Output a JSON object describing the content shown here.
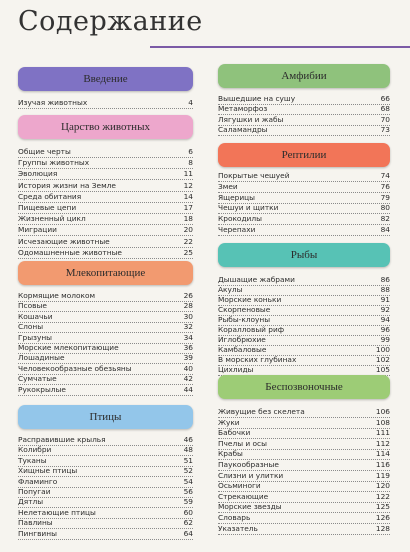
{
  "title": "Содержание",
  "columns": [
    {
      "sections": [
        {
          "heading": "Введение",
          "entries": [
            {
              "title": "Изучая животных",
              "page": 4
            }
          ]
        },
        {
          "heading": "Царство животных",
          "entries": [
            {
              "title": "Общие черты",
              "page": 6
            },
            {
              "title": "Группы животных",
              "page": 8
            },
            {
              "title": "Эволюция",
              "page": 11
            },
            {
              "title": "История жизни на Земле",
              "page": 12
            },
            {
              "title": "Среда обитания",
              "page": 14
            },
            {
              "title": "Пищевые цепи",
              "page": 17
            },
            {
              "title": "Жизненный цикл",
              "page": 18
            },
            {
              "title": "Миграции",
              "page": 20
            },
            {
              "title": "Исчезающие животные",
              "page": 22
            },
            {
              "title": "Одомашненные животные",
              "page": 25
            }
          ]
        },
        {
          "heading": "Млекопитающие",
          "entries": [
            {
              "title": "Кормящие молоком",
              "page": 26
            },
            {
              "title": "Псовые",
              "page": 28
            },
            {
              "title": "Кошачьи",
              "page": 30
            },
            {
              "title": "Слоны",
              "page": 32
            },
            {
              "title": "Грызуны",
              "page": 34
            },
            {
              "title": "Морские млекопитающие",
              "page": 36
            },
            {
              "title": "Лошадиные",
              "page": 39
            },
            {
              "title": "Человекообразные обезьяны",
              "page": 40
            },
            {
              "title": "Сумчатые",
              "page": 42
            },
            {
              "title": "Рукокрылые",
              "page": 44
            }
          ]
        },
        {
          "heading": "Птицы",
          "entries": [
            {
              "title": "Расправившие крылья",
              "page": 46
            },
            {
              "title": "Колибри",
              "page": 48
            },
            {
              "title": "Туканы",
              "page": 51
            },
            {
              "title": "Хищные птицы",
              "page": 52
            },
            {
              "title": "Фламинго",
              "page": 54
            },
            {
              "title": "Попугаи",
              "page": 56
            },
            {
              "title": "Дятлы",
              "page": 59
            },
            {
              "title": "Нелетающие птицы",
              "page": 60
            },
            {
              "title": "Павлины",
              "page": 62
            },
            {
              "title": "Пингвины",
              "page": 64
            }
          ]
        }
      ]
    },
    {
      "sections": [
        {
          "heading": "Амфибии",
          "entries": [
            {
              "title": "Вышедшие на сушу",
              "page": 66
            },
            {
              "title": "Метаморфоз",
              "page": 68
            },
            {
              "title": "Лягушки и жабы",
              "page": 70
            },
            {
              "title": "Саламандры",
              "page": 73
            }
          ]
        },
        {
          "heading": "Рептилии",
          "entries": [
            {
              "title": "Покрытые чешуей",
              "page": 74
            },
            {
              "title": "Змеи",
              "page": 76
            },
            {
              "title": "Ящерицы",
              "page": 79
            },
            {
              "title": "Чешуи и щитки",
              "page": 80
            },
            {
              "title": "Крокодилы",
              "page": 82
            },
            {
              "title": "Черепахи",
              "page": 84
            }
          ]
        },
        {
          "heading": "Рыбы",
          "entries": [
            {
              "title": "Дышащие жабрами",
              "page": 86
            },
            {
              "title": "Акулы",
              "page": 88
            },
            {
              "title": "Морские коньки",
              "page": 91
            },
            {
              "title": "Скорпеновые",
              "page": 92
            },
            {
              "title": "Рыбы-клоуны",
              "page": 94
            },
            {
              "title": "Коралловый риф",
              "page": 96
            },
            {
              "title": "Иглобрюхие",
              "page": 99
            },
            {
              "title": "Камбаловые",
              "page": 100
            },
            {
              "title": "В морских глубинах",
              "page": 102
            },
            {
              "title": "Цихлиды",
              "page": 105
            }
          ]
        },
        {
          "heading": "Беспозвоночные",
          "entries": [
            {
              "title": "Живущие без скелета",
              "page": 106
            },
            {
              "title": "Жуки",
              "page": 108
            },
            {
              "title": "Бабочки",
              "page": 111
            },
            {
              "title": "Пчелы и осы",
              "page": 112
            },
            {
              "title": "Крабы",
              "page": 114
            },
            {
              "title": "Паукообразные",
              "page": 116
            },
            {
              "title": "Слизни и улитки",
              "page": 119
            },
            {
              "title": "Осьминоги",
              "page": 120
            },
            {
              "title": "Стрекающие",
              "page": 122
            },
            {
              "title": "Морские звезды",
              "page": 125
            },
            {
              "title": "Словарь",
              "page": 126
            },
            {
              "title": "Указатель",
              "page": 128
            }
          ]
        }
      ]
    }
  ]
}
